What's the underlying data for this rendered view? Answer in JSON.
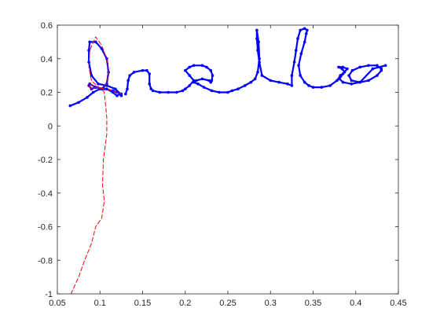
{
  "chart_data": {
    "type": "line",
    "title": "",
    "xlabel": "",
    "ylabel": "",
    "xlim": [
      0.05,
      0.45
    ],
    "ylim": [
      -1,
      0.6
    ],
    "xticks": [
      0.05,
      0.1,
      0.15,
      0.2,
      0.25,
      0.3,
      0.35,
      0.4,
      0.45
    ],
    "yticks": [
      -1,
      -0.8,
      -0.6,
      -0.4,
      -0.2,
      0,
      0.2,
      0.4,
      0.6
    ],
    "xtick_labels": [
      "0.05",
      "0.1",
      "0.15",
      "0.2",
      "0.25",
      "0.3",
      "0.35",
      "0.4",
      "0.45"
    ],
    "ytick_labels": [
      "-1",
      "-0.8",
      "-0.6",
      "-0.4",
      "-0.2",
      "0",
      "0.2",
      "0.4",
      "0.6"
    ],
    "grid": false,
    "legend": "none",
    "series": [
      {
        "style": "solid-dots",
        "color": "#0000ff",
        "x": [
          0.065,
          0.075,
          0.085,
          0.092,
          0.1,
          0.108,
          0.115,
          0.12,
          0.124,
          0.118,
          0.108,
          0.098,
          0.09,
          0.087,
          0.087,
          0.088,
          0.095,
          0.102,
          0.108,
          0.11,
          0.108,
          0.102,
          0.095,
          0.09,
          0.087,
          0.088,
          0.095,
          0.105,
          0.115,
          0.12,
          0.125,
          0.125
        ],
        "y": [
          0.12,
          0.14,
          0.17,
          0.2,
          0.22,
          0.22,
          0.2,
          0.18,
          0.19,
          0.22,
          0.24,
          0.25,
          0.3,
          0.38,
          0.45,
          0.5,
          0.5,
          0.46,
          0.4,
          0.32,
          0.25,
          0.22,
          0.23,
          0.22,
          0.24,
          0.25,
          0.23,
          0.22,
          0.21,
          0.2,
          0.19,
          0.18
        ],
        "x2": [
          0.13,
          0.132,
          0.133,
          0.135,
          0.14,
          0.15,
          0.155,
          0.158,
          0.158,
          0.16,
          0.162,
          0.17,
          0.18,
          0.19,
          0.197,
          0.2,
          0.205,
          0.21,
          0.205,
          0.2,
          0.205,
          0.21,
          0.22,
          0.225,
          0.23,
          0.232,
          0.231,
          0.23,
          0.228,
          0.22,
          0.213,
          0.21,
          0.215,
          0.222,
          0.231,
          0.24,
          0.25,
          0.255,
          0.262,
          0.27,
          0.277,
          0.282,
          0.285,
          0.287,
          0.286,
          0.284,
          0.284,
          0.285,
          0.287,
          0.29,
          0.3,
          0.31,
          0.32,
          0.325,
          0.325,
          0.328,
          0.33,
          0.332,
          0.335,
          0.34,
          0.343,
          0.342,
          0.34,
          0.336,
          0.333,
          0.335,
          0.34,
          0.345,
          0.35,
          0.36,
          0.37,
          0.378,
          0.382,
          0.387,
          0.384,
          0.38,
          0.385,
          0.39,
          0.385,
          0.381,
          0.385,
          0.395,
          0.405,
          0.415,
          0.425,
          0.43,
          0.43,
          0.425,
          0.415,
          0.405,
          0.396,
          0.392,
          0.395,
          0.405,
          0.42,
          0.435
        ],
        "y2": [
          0.19,
          0.22,
          0.27,
          0.3,
          0.32,
          0.33,
          0.33,
          0.31,
          0.25,
          0.22,
          0.21,
          0.2,
          0.2,
          0.2,
          0.21,
          0.22,
          0.24,
          0.27,
          0.3,
          0.33,
          0.35,
          0.36,
          0.36,
          0.35,
          0.33,
          0.3,
          0.27,
          0.26,
          0.27,
          0.28,
          0.27,
          0.26,
          0.25,
          0.23,
          0.21,
          0.2,
          0.2,
          0.21,
          0.22,
          0.24,
          0.26,
          0.28,
          0.32,
          0.4,
          0.5,
          0.57,
          0.52,
          0.45,
          0.38,
          0.3,
          0.27,
          0.26,
          0.25,
          0.24,
          0.3,
          0.38,
          0.45,
          0.52,
          0.57,
          0.58,
          0.57,
          0.55,
          0.5,
          0.43,
          0.36,
          0.3,
          0.26,
          0.24,
          0.23,
          0.23,
          0.24,
          0.27,
          0.3,
          0.32,
          0.34,
          0.35,
          0.35,
          0.34,
          0.31,
          0.28,
          0.26,
          0.25,
          0.26,
          0.27,
          0.3,
          0.33,
          0.34,
          0.36,
          0.36,
          0.35,
          0.33,
          0.3,
          0.27,
          0.26,
          0.34,
          0.36
        ]
      },
      {
        "style": "dashed",
        "color": "#ff0000",
        "x": [
          0.066,
          0.075,
          0.082,
          0.09,
          0.095,
          0.102,
          0.105,
          0.103,
          0.104,
          0.108,
          0.108,
          0.106,
          0.105,
          0.102,
          0.096,
          0.09,
          0.087,
          0.088,
          0.095,
          0.102,
          0.108,
          0.11,
          0.108,
          0.102,
          0.095,
          0.09,
          0.087,
          0.088,
          0.095,
          0.105,
          0.115,
          0.12,
          0.125
        ],
        "y": [
          -1.0,
          -0.9,
          -0.8,
          -0.7,
          -0.6,
          -0.55,
          -0.45,
          -0.35,
          -0.2,
          -0.05,
          0.05,
          0.15,
          0.2,
          0.22,
          0.24,
          0.27,
          0.35,
          0.45,
          0.53,
          0.48,
          0.4,
          0.32,
          0.25,
          0.22,
          0.23,
          0.22,
          0.24,
          0.25,
          0.23,
          0.22,
          0.21,
          0.2,
          0.19
        ]
      }
    ]
  }
}
